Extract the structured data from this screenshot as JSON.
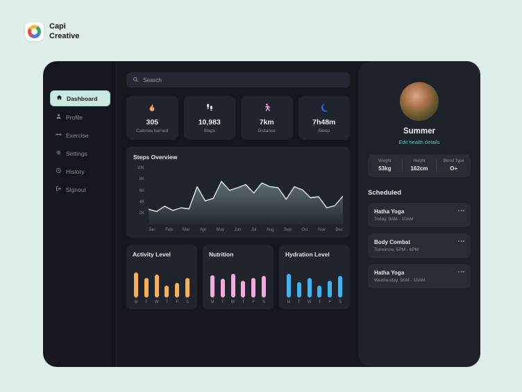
{
  "brand": {
    "line1": "Capi",
    "line2": "Creative"
  },
  "sidebar": {
    "items": [
      {
        "label": "Dashboard",
        "icon": "home-icon",
        "active": true
      },
      {
        "label": "Profile",
        "icon": "user-icon",
        "active": false
      },
      {
        "label": "Exercise",
        "icon": "dumbbell-icon",
        "active": false
      },
      {
        "label": "Settings",
        "icon": "gear-icon",
        "active": false
      },
      {
        "label": "History",
        "icon": "clock-icon",
        "active": false
      },
      {
        "label": "Signout",
        "icon": "signout-icon",
        "active": false
      }
    ]
  },
  "search": {
    "placeholder": "Search",
    "icon": "search-icon"
  },
  "stats": [
    {
      "icon": "flame-icon",
      "accent": "#f6a351",
      "value": "305",
      "label": "Calories burned"
    },
    {
      "icon": "footsteps-icon",
      "accent": "#e9edf2",
      "value": "10,983",
      "label": "Steps"
    },
    {
      "icon": "walking-person-icon",
      "accent": "#f0a0d8",
      "value": "7km",
      "label": "Distance"
    },
    {
      "icon": "moon-icon",
      "accent": "#2e66f6",
      "value": "7h48m",
      "label": "Sleep"
    }
  ],
  "chart_data": [
    {
      "type": "area",
      "title": "Steps Overview",
      "x": [
        "Jan",
        "Feb",
        "Mar",
        "Apr",
        "May",
        "Jun",
        "Jul",
        "Aug",
        "Sep",
        "Oct",
        "Nov",
        "Dec"
      ],
      "ylim": [
        0,
        10000
      ],
      "ytick_labels": [
        "10K",
        "8K",
        "6K",
        "4K",
        "2K"
      ],
      "points": [
        2600,
        2200,
        3200,
        2400,
        2900,
        2700,
        6900,
        4200,
        4700,
        7900,
        6200,
        6700,
        7300,
        5700,
        7600,
        6900,
        6700,
        4500,
        6900,
        6300,
        4800,
        5000,
        2900,
        3300,
        5100
      ],
      "line_color": "#e7efef",
      "fill_color": "#9fb8bd",
      "grid": false,
      "legend": false
    },
    {
      "type": "bar",
      "title": "Activity Level",
      "categories": [
        "M",
        "T",
        "W",
        "T",
        "F",
        "S"
      ],
      "values": [
        78,
        60,
        72,
        36,
        46,
        62
      ],
      "ylim": [
        0,
        100
      ],
      "color": "#f6b152"
    },
    {
      "type": "bar",
      "title": "Nutrition",
      "categories": [
        "M",
        "T",
        "W",
        "T",
        "F",
        "S"
      ],
      "values": [
        70,
        58,
        74,
        52,
        62,
        68
      ],
      "ylim": [
        0,
        100
      ],
      "color": "#f2a9de"
    },
    {
      "type": "bar",
      "title": "Hydration Level",
      "categories": [
        "M",
        "T",
        "W",
        "T",
        "F",
        "S"
      ],
      "values": [
        74,
        48,
        62,
        38,
        52,
        68
      ],
      "ylim": [
        0,
        100
      ],
      "color": "#3ab5f5"
    }
  ],
  "profile": {
    "name": "Summer",
    "edit_link": "Edit health details",
    "metrics": [
      {
        "label": "Weight",
        "value": "53kg"
      },
      {
        "label": "Height",
        "value": "162cm"
      },
      {
        "label": "Blood Type",
        "value": "O+"
      }
    ]
  },
  "scheduled": {
    "title": "Scheduled",
    "items": [
      {
        "title": "Hatha Yoga",
        "time": "Today, 9AM - 10AM"
      },
      {
        "title": "Body Combat",
        "time": "Tomorrow, 5PM - 6PM"
      },
      {
        "title": "Hatha Yoga",
        "time": "Wednesday, 9AM - 10AM"
      }
    ]
  },
  "colors": {
    "page_bg": "#dfeeeb",
    "card_bg": "#14171d",
    "panel_bg": "#1d2129",
    "tile_bg": "#20242d",
    "chip_bg": "#272c36",
    "accent_mint": "#cde8e2",
    "link_teal": "#5fc4b8",
    "text_muted": "#8b919d"
  }
}
